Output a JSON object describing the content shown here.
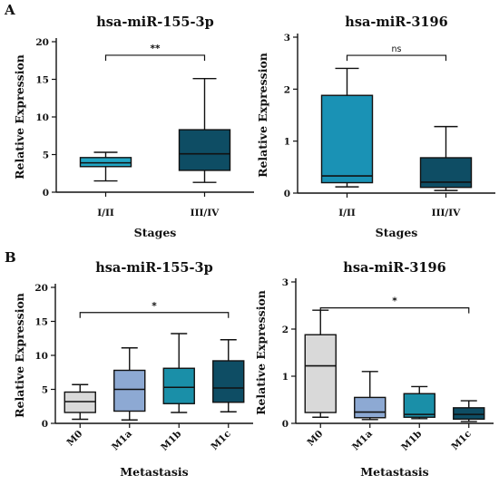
{
  "chart_data": [
    {
      "type": "boxplot",
      "panel": "A",
      "title": "hsa-miR-155-3p",
      "xlabel": "Stages",
      "ylabel": "Relative Expression",
      "ylim": [
        0,
        20
      ],
      "yticks": [
        0,
        5,
        10,
        15,
        20
      ],
      "categories": [
        "I/II",
        "III/IV"
      ],
      "boxes": [
        {
          "min": 1.5,
          "q1": 3.4,
          "median": 3.9,
          "q3": 4.6,
          "max": 5.3,
          "color": "#22a6c4"
        },
        {
          "min": 1.3,
          "q1": 2.9,
          "median": 5.1,
          "q3": 8.3,
          "max": 15.1,
          "color": "#0e4d64"
        }
      ],
      "comparisons": [
        {
          "from": 0,
          "to": 1,
          "label": "**",
          "y": 18.2
        }
      ]
    },
    {
      "type": "boxplot",
      "panel": "",
      "title": "hsa-miR-3196",
      "xlabel": "Stages",
      "ylabel": "Relative Expression",
      "ylim": [
        0,
        3
      ],
      "yticks": [
        0,
        1,
        2,
        3
      ],
      "categories": [
        "I/II",
        "III/IV"
      ],
      "boxes": [
        {
          "min": 0.12,
          "q1": 0.2,
          "median": 0.33,
          "q3": 1.88,
          "max": 2.4,
          "color": "#1a92b5"
        },
        {
          "min": 0.05,
          "q1": 0.11,
          "median": 0.21,
          "q3": 0.68,
          "max": 1.28,
          "color": "#0e4d64"
        }
      ],
      "comparisons": [
        {
          "from": 0,
          "to": 1,
          "label": "ns",
          "y": 2.65
        }
      ]
    },
    {
      "type": "boxplot",
      "panel": "B",
      "title": "hsa-miR-155-3p",
      "xlabel": "Metastasis",
      "ylabel": "Relative Expression",
      "ylim": [
        0,
        20
      ],
      "yticks": [
        0,
        5,
        10,
        15,
        20
      ],
      "categories": [
        "M0",
        "M1a",
        "M1b",
        "M1c"
      ],
      "boxes": [
        {
          "min": 0.6,
          "q1": 1.6,
          "median": 3.2,
          "q3": 4.6,
          "max": 5.7,
          "color": "#d9d9d9"
        },
        {
          "min": 0.5,
          "q1": 1.8,
          "median": 5.0,
          "q3": 7.8,
          "max": 11.1,
          "color": "#8da9d3"
        },
        {
          "min": 1.6,
          "q1": 2.9,
          "median": 5.3,
          "q3": 8.1,
          "max": 13.2,
          "color": "#1a8fa8"
        },
        {
          "min": 1.7,
          "q1": 3.1,
          "median": 5.2,
          "q3": 9.2,
          "max": 12.3,
          "color": "#0e4d64"
        }
      ],
      "comparisons": [
        {
          "from": 0,
          "to": 3,
          "label": "*",
          "y": 16.3
        }
      ]
    },
    {
      "type": "boxplot",
      "panel": "",
      "title": "hsa-miR-3196",
      "xlabel": "Metastasis",
      "ylabel": "Relative Expression",
      "ylim": [
        0,
        3
      ],
      "yticks": [
        0,
        1,
        2,
        3
      ],
      "categories": [
        "M0",
        "M1a",
        "M1b",
        "M1c"
      ],
      "boxes": [
        {
          "min": 0.13,
          "q1": 0.23,
          "median": 1.22,
          "q3": 1.88,
          "max": 2.4,
          "color": "#d9d9d9"
        },
        {
          "min": 0.08,
          "q1": 0.12,
          "median": 0.24,
          "q3": 0.55,
          "max": 1.1,
          "color": "#8da9d3"
        },
        {
          "min": 0.1,
          "q1": 0.13,
          "median": 0.19,
          "q3": 0.63,
          "max": 0.78,
          "color": "#1a8fa8"
        },
        {
          "min": 0.04,
          "q1": 0.09,
          "median": 0.19,
          "q3": 0.33,
          "max": 0.48,
          "color": "#0e4d64"
        }
      ],
      "comparisons": [
        {
          "from": 0,
          "to": 3,
          "label": "*",
          "y": 2.45
        }
      ]
    }
  ]
}
